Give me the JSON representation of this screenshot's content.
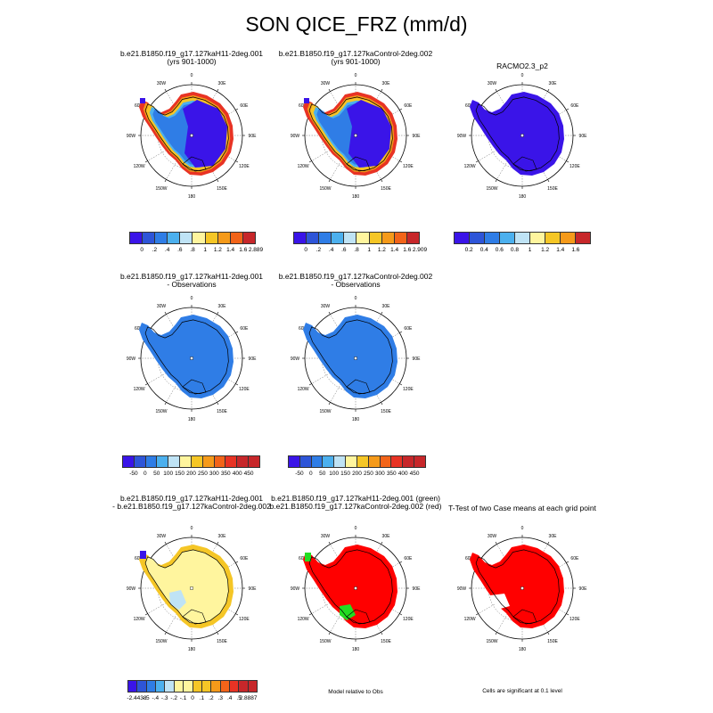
{
  "title": "SON QICE_FRZ (mm/d)",
  "colors": {
    "ocean_bg": "#ffffff",
    "coast": "#000000",
    "palette": [
      "#3a14e8",
      "#2e55d8",
      "#2f7de6",
      "#4cb0ee",
      "#bfe3f5",
      "#fff59e",
      "#f5c626",
      "#f59a1a",
      "#f26419",
      "#e83324",
      "#c7272a"
    ]
  },
  "panels": [
    {
      "id": "case1",
      "title": [
        "b.e21.B1850.f19_g17.127kaH11-2deg.001",
        "(yrs 901-1000)"
      ]
    },
    {
      "id": "case2",
      "title": [
        "b.e21.B1850.f19_g17.127kaControl-2deg.002",
        "(yrs 901-1000)"
      ]
    },
    {
      "id": "obs",
      "title": [
        "RACMO2.3_p2"
      ]
    },
    {
      "id": "case1-obs",
      "title": [
        "b.e21.B1850.f19_g17.127kaH11-2deg.001",
        "- Observations"
      ]
    },
    {
      "id": "case2-obs",
      "title": [
        "b.e21.B1850.f19_g17.127kaControl-2deg.002",
        "- Observations"
      ]
    },
    {
      "id": "diff",
      "title": [
        "b.e21.B1850.f19_g17.127kaH11-2deg.001",
        "- b.e21.B1850.f19_g17.127kaControl-2deg.002"
      ]
    },
    {
      "id": "rel",
      "title": [
        "b.e21.B1850.f19_g17.127kaH11-2deg.001 (green)",
        "b.e21.B1850.f19_g17.127kaControl-2deg.002 (red)"
      ]
    },
    {
      "id": "ttest",
      "title": [
        "T-Test of two Case means at each grid point"
      ]
    }
  ],
  "lon_labels": [
    "0",
    "30E",
    "60E",
    "90E",
    "120E",
    "150E",
    "180",
    "150W",
    "120W",
    "90W",
    "60W",
    "30W"
  ],
  "colorbars": {
    "case1": [
      "0",
      ".2",
      ".4",
      ".6",
      ".8",
      "1",
      "1.2",
      "1.4",
      "1.6",
      "2.889"
    ],
    "case2": [
      "0",
      ".2",
      ".4",
      ".6",
      ".8",
      "1",
      "1.2",
      "1.4",
      "1.6",
      "2.909"
    ],
    "obs": [
      "0.2",
      "0.4",
      "0.6",
      "0.8",
      "1",
      "1.2",
      "1.4",
      "1.6"
    ],
    "case1_obs": [
      "-50",
      "0",
      "50",
      "100",
      "150",
      "200",
      "250",
      "300",
      "350",
      "400",
      "450"
    ],
    "case2_obs": [
      "-50",
      "0",
      "50",
      "100",
      "150",
      "200",
      "250",
      "300",
      "350",
      "400",
      "450"
    ],
    "diff": [
      "-2.4438",
      "-.5",
      "-.4",
      "-.3",
      "-.2",
      "-.1",
      "0",
      ".1",
      ".2",
      ".3",
      ".4",
      ".5",
      "2.8887"
    ]
  },
  "footnotes": {
    "rel": "Model relative to Obs",
    "ttest": "Cells are significant at 0.1 level"
  },
  "chart_data": [
    {
      "type": "heatmap",
      "title": "b.e21.B1850.f19_g17.127kaH11-2deg.001 (yrs 901-1000)",
      "fill": "interior low (~0-0.2), coastal high (>1.6)",
      "colorbar": [
        "0",
        ".2",
        ".4",
        ".6",
        ".8",
        "1",
        "1.2",
        "1.4",
        "1.6",
        "2.889"
      ]
    },
    {
      "type": "heatmap",
      "title": "b.e21.B1850.f19_g17.127kaControl-2deg.002 (yrs 901-1000)",
      "colorbar": [
        "0",
        ".2",
        ".4",
        ".6",
        ".8",
        "1",
        "1.2",
        "1.4",
        "1.6",
        "2.909"
      ]
    },
    {
      "type": "heatmap",
      "title": "RACMO2.3_p2",
      "fill": "uniform lowest class",
      "colorbar": [
        "0.2",
        "0.4",
        "0.6",
        "0.8",
        "1",
        "1.2",
        "1.4",
        "1.6"
      ]
    },
    {
      "type": "heatmap",
      "title": "case1 - Observations",
      "fill": "uniform -50 to 0 class",
      "colorbar": [
        "-50",
        "0",
        "50",
        "100",
        "150",
        "200",
        "250",
        "300",
        "350",
        "400",
        "450"
      ]
    },
    {
      "type": "heatmap",
      "title": "case2 - Observations",
      "fill": "uniform -50 to 0 class",
      "colorbar": [
        "-50",
        "0",
        "50",
        "100",
        "150",
        "200",
        "250",
        "300",
        "350",
        "400",
        "450"
      ]
    },
    {
      "type": "heatmap",
      "title": "case1 - case2",
      "colorbar": [
        "-2.4438",
        "-.5",
        "-.4",
        "-.3",
        "-.2",
        "-.1",
        "0",
        ".1",
        ".2",
        ".3",
        ".4",
        ".5",
        "2.8887"
      ]
    },
    {
      "type": "heatmap",
      "title": "Model relative to Obs",
      "legend": [
        "green",
        "red"
      ]
    },
    {
      "type": "heatmap",
      "title": "T-Test of two Case means at each grid point",
      "note": "Cells are significant at 0.1 level"
    }
  ]
}
